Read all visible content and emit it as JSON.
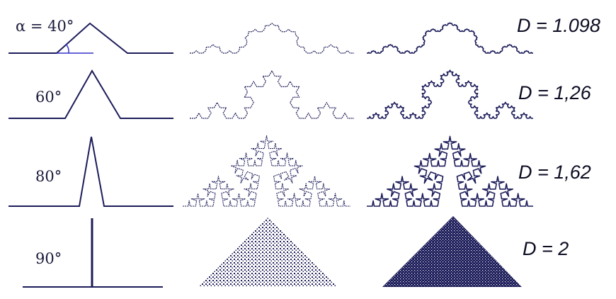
{
  "colors": {
    "line": "#1c1c5a",
    "fractal": "#1c1c5a",
    "arc": "#3333cc",
    "text": "#0d0d24"
  },
  "rows": [
    {
      "angle_label": "α = 40°",
      "angle_deg": 40,
      "dimension_label": "D = 1.098"
    },
    {
      "angle_label": "60°",
      "angle_deg": 60,
      "dimension_label": "D = 1,26"
    },
    {
      "angle_label": "80°",
      "angle_deg": 80,
      "dimension_label": "D = 1,62"
    },
    {
      "angle_label": "90°",
      "angle_deg": 90,
      "dimension_label": "D = 2"
    }
  ]
}
